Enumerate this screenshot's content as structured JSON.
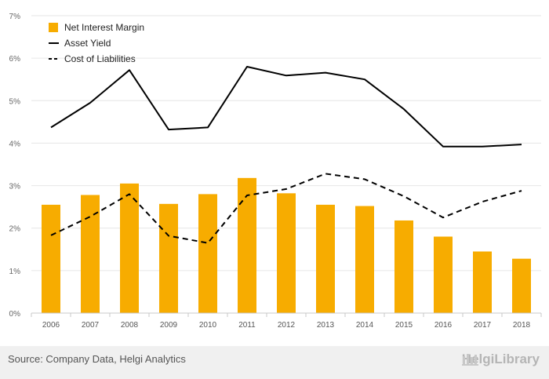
{
  "chart_data": {
    "type": "bar",
    "categories": [
      "2006",
      "2007",
      "2008",
      "2009",
      "2010",
      "2011",
      "2012",
      "2013",
      "2014",
      "2015",
      "2016",
      "2017",
      "2018"
    ],
    "series": [
      {
        "name": "Net Interest Margin",
        "kind": "bar",
        "color": "#F7AC00",
        "values": [
          2.55,
          2.78,
          3.05,
          2.57,
          2.8,
          3.18,
          2.82,
          2.55,
          2.52,
          2.18,
          1.8,
          1.45,
          1.28
        ]
      },
      {
        "name": "Asset Yield",
        "kind": "line",
        "style": "solid",
        "color": "#000000",
        "values": [
          4.37,
          4.95,
          5.72,
          4.32,
          4.37,
          5.8,
          5.59,
          5.66,
          5.5,
          4.8,
          3.92,
          3.92,
          3.97
        ]
      },
      {
        "name": "Cost of Liabilities",
        "kind": "line",
        "style": "dashed",
        "color": "#000000",
        "values": [
          1.83,
          2.27,
          2.8,
          1.82,
          1.65,
          2.77,
          2.92,
          3.28,
          3.15,
          2.75,
          2.25,
          2.62,
          2.88
        ]
      }
    ],
    "ylim": [
      0,
      7
    ],
    "yticks": [
      "0%",
      "1%",
      "2%",
      "3%",
      "4%",
      "5%",
      "6%",
      "7%"
    ],
    "grid": true,
    "legend_position": "top-left"
  },
  "footer": {
    "source": "Source: Company Data, Helgi Analytics",
    "brand": "HelgiLibrary"
  }
}
